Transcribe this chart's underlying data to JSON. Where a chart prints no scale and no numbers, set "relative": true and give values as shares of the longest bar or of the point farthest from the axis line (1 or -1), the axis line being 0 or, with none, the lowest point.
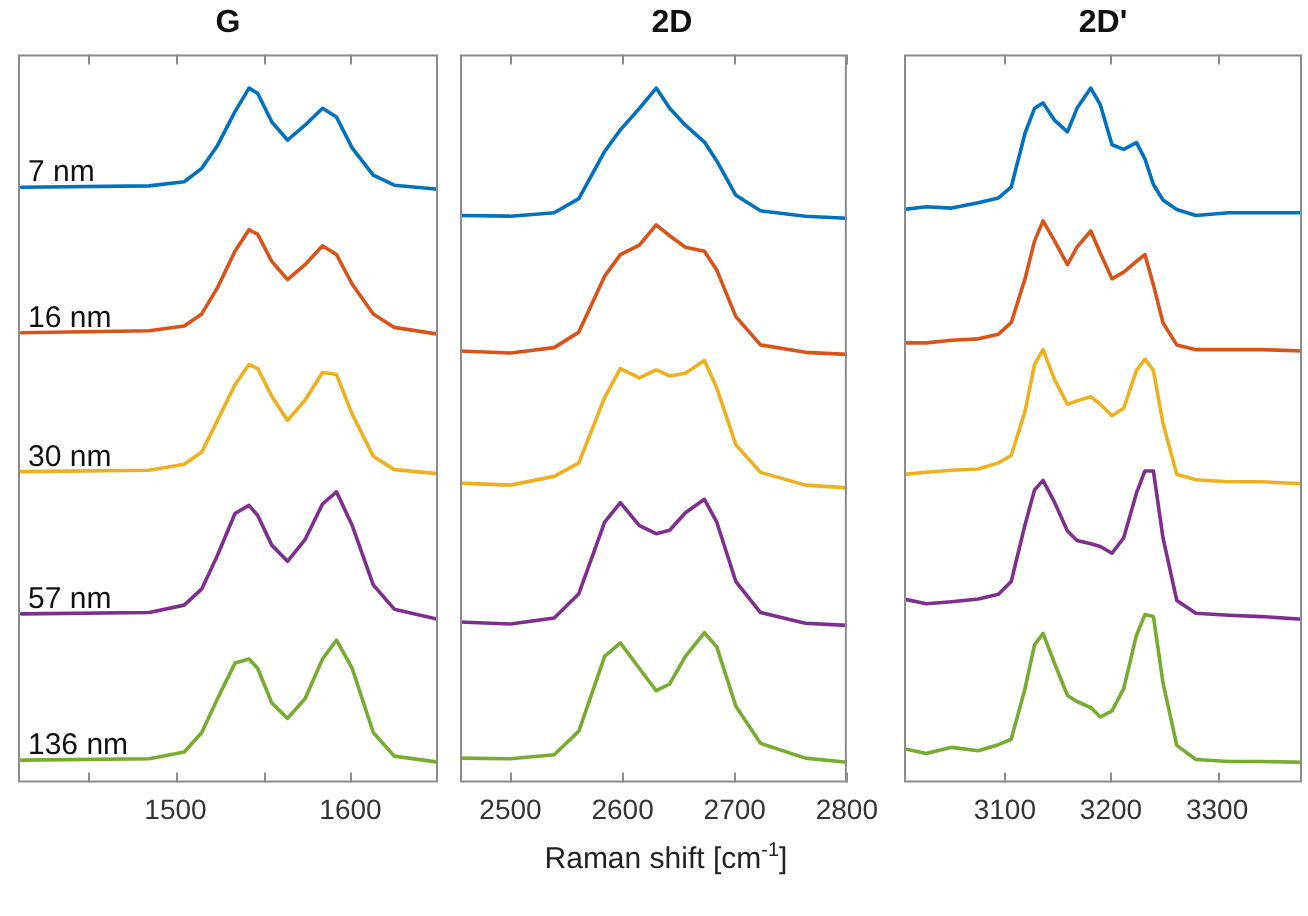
{
  "chart_data": [
    {
      "type": "line",
      "title": "G",
      "relative": true,
      "tick_labels": "x",
      "grid": false,
      "legend": false,
      "marker": "none",
      "line_style": "solid",
      "x": [
        1412,
        1485,
        1505,
        1515,
        1524,
        1534,
        1542,
        1547,
        1555,
        1564,
        1574,
        1584,
        1592,
        1601,
        1613,
        1625,
        1650
      ],
      "xlim": [
        1410,
        1650
      ],
      "xticks": [
        {
          "value": 1450,
          "label": null
        },
        1500,
        {
          "value": 1550,
          "label": null
        },
        1600
      ],
      "series": [
        {
          "name": "7 nm",
          "color": "#0072bd",
          "values": [
            0.853,
            0.855,
            0.861,
            0.881,
            0.915,
            0.965,
            1,
            0.992,
            0.95,
            0.923,
            0.945,
            0.97,
            0.957,
            0.911,
            0.871,
            0.856,
            0.85
          ]
        },
        {
          "name": "16 nm",
          "color": "#d95319",
          "values": [
            0.637,
            0.64,
            0.647,
            0.665,
            0.704,
            0.758,
            0.79,
            0.783,
            0.743,
            0.716,
            0.738,
            0.766,
            0.753,
            0.709,
            0.665,
            0.645,
            0.635
          ]
        },
        {
          "name": "30 nm",
          "color": "#edb120",
          "values": [
            0.431,
            0.433,
            0.442,
            0.46,
            0.507,
            0.56,
            0.59,
            0.584,
            0.543,
            0.507,
            0.537,
            0.578,
            0.575,
            0.516,
            0.454,
            0.434,
            0.428
          ]
        },
        {
          "name": "57 nm",
          "color": "#7e2f8e",
          "values": [
            0.22,
            0.222,
            0.233,
            0.257,
            0.307,
            0.369,
            0.381,
            0.366,
            0.322,
            0.298,
            0.33,
            0.383,
            0.401,
            0.351,
            0.263,
            0.227,
            0.212
          ]
        },
        {
          "name": "136 nm",
          "color": "#77ac30",
          "values": [
            0.003,
            0.005,
            0.015,
            0.044,
            0.094,
            0.147,
            0.153,
            0.139,
            0.088,
            0.065,
            0.094,
            0.153,
            0.181,
            0.139,
            0.044,
            0.009,
            0
          ]
        }
      ]
    },
    {
      "type": "line",
      "title": "2D",
      "xlabel": "Raman shift [cm$^{-1}$]",
      "relative": true,
      "tick_labels": "x",
      "grid": false,
      "legend": false,
      "marker": "none",
      "line_style": "solid",
      "x": [
        2455,
        2500,
        2539,
        2561,
        2584,
        2598,
        2615,
        2630,
        2642,
        2656,
        2673,
        2684,
        2701,
        2723,
        2763,
        2800
      ],
      "xlim": [
        2455,
        2800
      ],
      "xticks": [
        2500,
        2600,
        2700,
        2800
      ],
      "series": [
        {
          "color": "#0072bd",
          "values": [
            0.811,
            0.81,
            0.815,
            0.836,
            0.906,
            0.938,
            0.97,
            1,
            0.97,
            0.945,
            0.92,
            0.892,
            0.841,
            0.818,
            0.81,
            0.807
          ]
        },
        {
          "color": "#d95319",
          "values": [
            0.61,
            0.607,
            0.615,
            0.638,
            0.721,
            0.753,
            0.767,
            0.797,
            0.781,
            0.764,
            0.758,
            0.73,
            0.661,
            0.619,
            0.608,
            0.605
          ]
        },
        {
          "color": "#edb120",
          "values": [
            0.414,
            0.411,
            0.424,
            0.444,
            0.541,
            0.584,
            0.57,
            0.582,
            0.573,
            0.577,
            0.596,
            0.555,
            0.471,
            0.43,
            0.411,
            0.407
          ]
        },
        {
          "color": "#7e2f8e",
          "values": [
            0.208,
            0.205,
            0.214,
            0.25,
            0.356,
            0.385,
            0.351,
            0.339,
            0.344,
            0.37,
            0.39,
            0.356,
            0.268,
            0.222,
            0.206,
            0.203
          ]
        },
        {
          "color": "#77ac30",
          "values": [
            0.006,
            0.005,
            0.011,
            0.046,
            0.157,
            0.177,
            0.139,
            0.106,
            0.116,
            0.157,
            0.192,
            0.171,
            0.083,
            0.028,
            0.006,
            0
          ]
        }
      ]
    },
    {
      "type": "line",
      "title": "2D'",
      "relative": true,
      "tick_labels": "x",
      "grid": false,
      "legend": false,
      "marker": "none",
      "line_style": "solid",
      "x": [
        3005,
        3026,
        3050,
        3075,
        3094,
        3106,
        3119,
        3128,
        3136,
        3147,
        3159,
        3168,
        3181,
        3190,
        3201,
        3212,
        3224,
        3232,
        3240,
        3249,
        3262,
        3280,
        3311,
        3342,
        3380
      ],
      "xlim": [
        3005,
        3380
      ],
      "xticks": [
        3100,
        3200,
        3300
      ],
      "series": [
        {
          "color": "#0072bd",
          "values": [
            0.82,
            0.824,
            0.822,
            0.83,
            0.837,
            0.853,
            0.933,
            0.97,
            0.978,
            0.952,
            0.935,
            0.97,
            1,
            0.975,
            0.916,
            0.909,
            0.919,
            0.895,
            0.857,
            0.834,
            0.82,
            0.811,
            0.815,
            0.815,
            0.815
          ]
        },
        {
          "color": "#d95319",
          "values": [
            0.622,
            0.622,
            0.626,
            0.628,
            0.635,
            0.652,
            0.717,
            0.773,
            0.803,
            0.773,
            0.738,
            0.764,
            0.788,
            0.755,
            0.717,
            0.727,
            0.743,
            0.753,
            0.708,
            0.652,
            0.619,
            0.612,
            0.612,
            0.612,
            0.61
          ]
        },
        {
          "color": "#edb120",
          "values": [
            0.427,
            0.43,
            0.433,
            0.435,
            0.444,
            0.455,
            0.52,
            0.59,
            0.612,
            0.567,
            0.531,
            0.536,
            0.542,
            0.531,
            0.514,
            0.525,
            0.581,
            0.598,
            0.581,
            0.503,
            0.427,
            0.419,
            0.416,
            0.416,
            0.413
          ]
        },
        {
          "color": "#7e2f8e",
          "values": [
            0.242,
            0.235,
            0.238,
            0.242,
            0.249,
            0.268,
            0.352,
            0.404,
            0.418,
            0.385,
            0.343,
            0.329,
            0.324,
            0.32,
            0.31,
            0.333,
            0.399,
            0.432,
            0.432,
            0.333,
            0.24,
            0.221,
            0.218,
            0.216,
            0.212
          ]
        },
        {
          "color": "#77ac30",
          "values": [
            0.02,
            0.013,
            0.022,
            0.017,
            0.026,
            0.034,
            0.109,
            0.174,
            0.191,
            0.146,
            0.099,
            0.09,
            0.081,
            0.067,
            0.076,
            0.109,
            0.188,
            0.219,
            0.216,
            0.118,
            0.025,
            0.004,
            0.001,
            0.001,
            0
          ]
        }
      ]
    }
  ]
}
